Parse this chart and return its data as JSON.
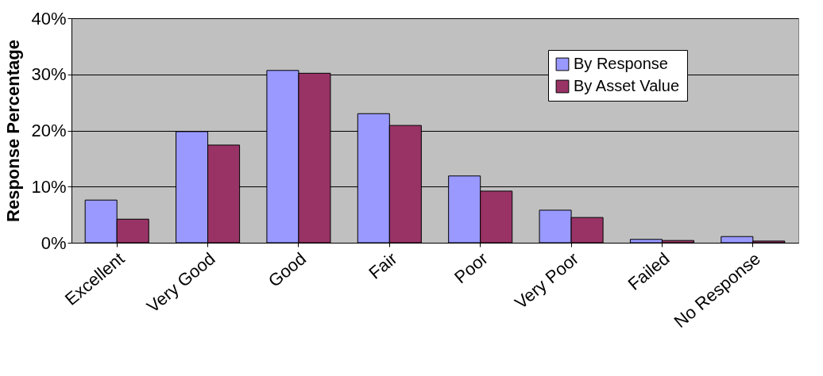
{
  "chart_data": {
    "type": "bar",
    "ylabel": "Response Percentage",
    "categories": [
      "Excellent",
      "Very Good",
      "Good",
      "Fair",
      "Poor",
      "Very Poor",
      "Failed",
      "No Response"
    ],
    "series": [
      {
        "name": "By Response",
        "color": "#9999ff",
        "values": [
          7.6,
          19.8,
          30.7,
          23.0,
          11.9,
          5.8,
          0.6,
          1.1
        ]
      },
      {
        "name": "By Asset Value",
        "color": "#993366",
        "values": [
          4.2,
          17.4,
          30.2,
          20.9,
          9.2,
          4.5,
          0.4,
          0.3
        ]
      }
    ],
    "ylim": [
      0,
      40
    ],
    "yticks": [
      {
        "value": 0,
        "label": "0%"
      },
      {
        "value": 10,
        "label": "10%"
      },
      {
        "value": 20,
        "label": "20%"
      },
      {
        "value": 30,
        "label": "30%"
      },
      {
        "value": 40,
        "label": "40%"
      }
    ],
    "grid": "y",
    "legend": "top right"
  }
}
